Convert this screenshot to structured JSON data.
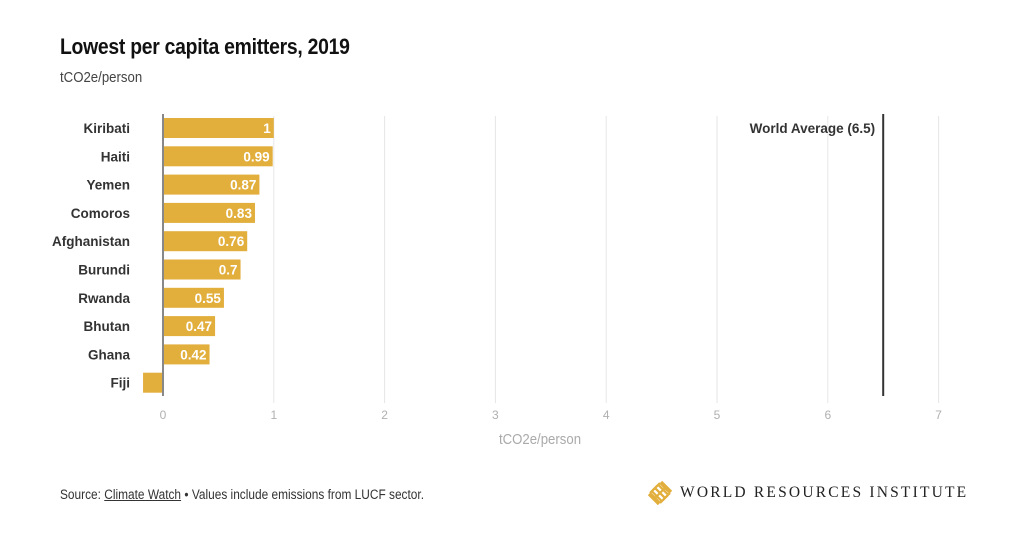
{
  "header": {
    "title": "Lowest per capita emitters, 2019",
    "subtitle": "tCO2e/person"
  },
  "chart_data": {
    "type": "bar",
    "orientation": "horizontal",
    "title": "Lowest per capita emitters, 2019",
    "subtitle": "tCO2e/person",
    "xlabel": "tCO2e/person",
    "ylabel": "",
    "categories": [
      "Kiribati",
      "Haiti",
      "Yemen",
      "Comoros",
      "Afghanistan",
      "Burundi",
      "Rwanda",
      "Bhutan",
      "Ghana",
      "Fiji"
    ],
    "values": [
      1,
      0.99,
      0.87,
      0.83,
      0.76,
      0.7,
      0.55,
      0.47,
      0.42,
      -0.18
    ],
    "data_labels": [
      "1",
      "0.99",
      "0.87",
      "0.83",
      "0.76",
      "0.7",
      "0.55",
      "0.47",
      "0.42",
      ""
    ],
    "xlim": [
      0,
      7
    ],
    "xticks": [
      "0",
      "1",
      "2",
      "3",
      "4",
      "5",
      "6",
      "7"
    ],
    "grid": true,
    "bar_color": "#e2ae3c",
    "reference_line": {
      "label": "World Average (6.5)",
      "value": 6.5,
      "color": "#333333"
    }
  },
  "footer": {
    "source_prefix": "Source: ",
    "source_link": "Climate Watch",
    "note": " • Values include emissions from LUCF sector."
  },
  "logo": {
    "icon": "wri-knot-icon",
    "text": "WORLD RESOURCES INSTITUTE",
    "color": "#e2ae3c"
  }
}
